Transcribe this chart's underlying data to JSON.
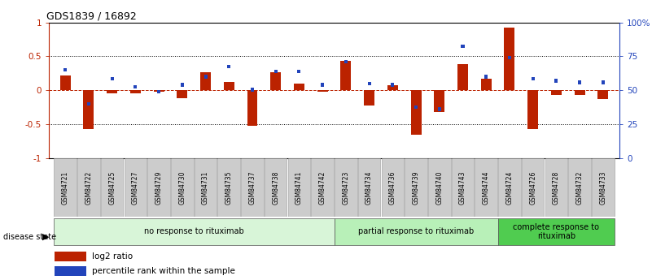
{
  "title": "GDS1839 / 16892",
  "samples": [
    "GSM84721",
    "GSM84722",
    "GSM84725",
    "GSM84727",
    "GSM84729",
    "GSM84730",
    "GSM84731",
    "GSM84735",
    "GSM84737",
    "GSM84738",
    "GSM84741",
    "GSM84742",
    "GSM84723",
    "GSM84734",
    "GSM84736",
    "GSM84739",
    "GSM84740",
    "GSM84743",
    "GSM84744",
    "GSM84724",
    "GSM84726",
    "GSM84728",
    "GSM84732",
    "GSM84733"
  ],
  "log2_ratio": [
    0.22,
    -0.57,
    -0.05,
    -0.05,
    -0.02,
    -0.12,
    0.27,
    0.12,
    -0.52,
    0.27,
    0.1,
    -0.02,
    0.43,
    -0.22,
    0.07,
    -0.65,
    -0.32,
    0.38,
    0.17,
    0.92,
    -0.57,
    -0.07,
    -0.07,
    -0.13
  ],
  "percentile_y": [
    0.3,
    -0.2,
    0.17,
    0.05,
    -0.02,
    0.08,
    0.2,
    0.35,
    0.01,
    0.28,
    0.28,
    0.08,
    0.42,
    0.1,
    0.08,
    -0.25,
    -0.28,
    0.65,
    0.2,
    0.48,
    0.17,
    0.14,
    0.12,
    0.12
  ],
  "group_labels": [
    "no response to rituximab",
    "partial response to rituximab",
    "complete response to\nrituximab"
  ],
  "group_sizes": [
    12,
    7,
    5
  ],
  "group_colors_bg": [
    "#d8f5d8",
    "#b8f0b8",
    "#50cc50"
  ],
  "bar_color": "#bb2200",
  "blue_color": "#2244bb",
  "ylim": [
    -1,
    1
  ],
  "yticks_left": [
    -1,
    -0.5,
    0,
    0.5,
    1
  ],
  "ytick_left_labels": [
    "-1",
    "-0.5",
    "0",
    "0.5",
    "1"
  ],
  "ytick_right_labels": [
    "0",
    "25",
    "50",
    "75",
    "100%"
  ],
  "dotted_lines": [
    -0.5,
    0.5
  ],
  "bg_color": "#ffffff",
  "tick_bg": "#cccccc",
  "legend_items": [
    "log2 ratio",
    "percentile rank within the sample"
  ]
}
